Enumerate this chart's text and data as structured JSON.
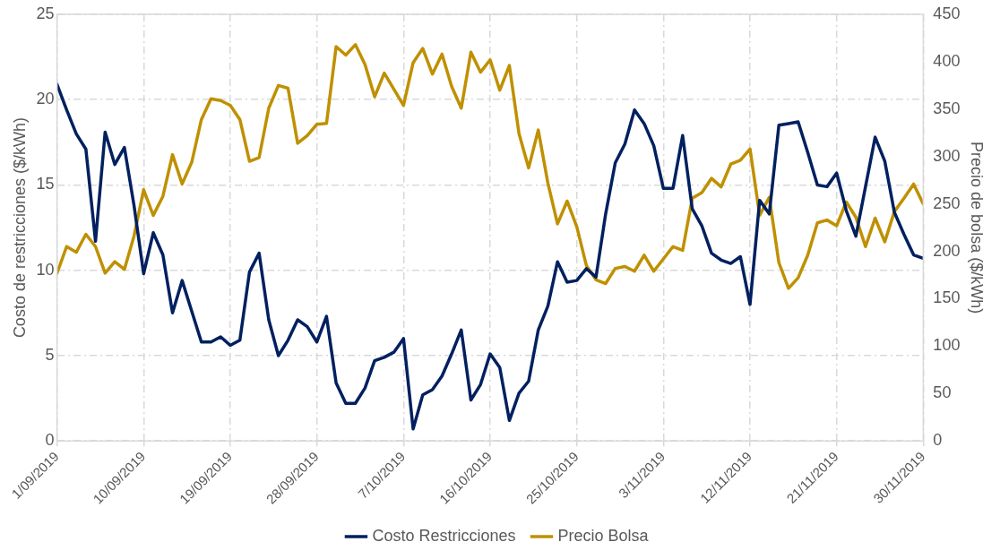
{
  "chart_data": {
    "type": "line",
    "ylabel": "Costo de restricciones ($/kWh)",
    "y2label": "Precio de bolsa ($/kWh)",
    "x": [
      "2019-09-01",
      "2019-09-02",
      "2019-09-03",
      "2019-09-04",
      "2019-09-05",
      "2019-09-06",
      "2019-09-07",
      "2019-09-08",
      "2019-09-09",
      "2019-09-10",
      "2019-09-11",
      "2019-09-12",
      "2019-09-13",
      "2019-09-14",
      "2019-09-15",
      "2019-09-16",
      "2019-09-17",
      "2019-09-18",
      "2019-09-19",
      "2019-09-20",
      "2019-09-21",
      "2019-09-22",
      "2019-09-23",
      "2019-09-24",
      "2019-09-25",
      "2019-09-26",
      "2019-09-27",
      "2019-09-28",
      "2019-09-29",
      "2019-09-30",
      "2019-10-01",
      "2019-10-02",
      "2019-10-03",
      "2019-10-04",
      "2019-10-05",
      "2019-10-06",
      "2019-10-07",
      "2019-10-08",
      "2019-10-09",
      "2019-10-10",
      "2019-10-11",
      "2019-10-12",
      "2019-10-13",
      "2019-10-14",
      "2019-10-15",
      "2019-10-16",
      "2019-10-17",
      "2019-10-18",
      "2019-10-19",
      "2019-10-20",
      "2019-10-21",
      "2019-10-22",
      "2019-10-23",
      "2019-10-24",
      "2019-10-25",
      "2019-10-26",
      "2019-10-27",
      "2019-10-28",
      "2019-10-29",
      "2019-10-30",
      "2019-10-31",
      "2019-11-01",
      "2019-11-02",
      "2019-11-03",
      "2019-11-04",
      "2019-11-05",
      "2019-11-06",
      "2019-11-07",
      "2019-11-08",
      "2019-11-09",
      "2019-11-10",
      "2019-11-11",
      "2019-11-12",
      "2019-11-13",
      "2019-11-14",
      "2019-11-15",
      "2019-11-16",
      "2019-11-17",
      "2019-11-18",
      "2019-11-19",
      "2019-11-20",
      "2019-11-21",
      "2019-11-22",
      "2019-11-23",
      "2019-11-24",
      "2019-11-25",
      "2019-11-26",
      "2019-11-27",
      "2019-11-28",
      "2019-11-29",
      "2019-11-30"
    ],
    "series": [
      {
        "name": "Costo Restricciones",
        "color": "#002060",
        "axis": "y",
        "values": [
          20.9,
          19.4,
          18.0,
          17.1,
          11.7,
          18.1,
          16.2,
          17.2,
          13.8,
          9.8,
          12.2,
          10.9,
          7.5,
          9.4,
          7.6,
          5.8,
          5.8,
          6.1,
          5.6,
          5.9,
          9.9,
          11.0,
          7.1,
          5.0,
          5.9,
          7.1,
          6.7,
          5.8,
          7.3,
          3.4,
          2.2,
          2.2,
          3.1,
          4.7,
          4.9,
          5.2,
          6.0,
          0.7,
          2.7,
          3.0,
          3.8,
          5.1,
          6.5,
          2.4,
          3.3,
          5.1,
          4.3,
          1.2,
          2.8,
          3.5,
          6.5,
          7.9,
          10.5,
          9.3,
          9.4,
          10.1,
          9.6,
          13.3,
          16.3,
          17.4,
          19.4,
          18.6,
          17.3,
          14.8,
          14.8,
          17.9,
          13.6,
          12.6,
          11.0,
          10.6,
          10.4,
          10.8,
          8.0,
          14.1,
          13.3,
          18.5,
          18.6,
          18.7,
          16.9,
          15.0,
          14.9,
          15.7,
          13.5,
          12.0,
          14.9,
          17.8,
          16.4,
          13.4,
          12.1,
          10.9,
          10.7
        ]
      },
      {
        "name": "Precio Bolsa",
        "color": "#bf9000",
        "axis": "y2",
        "values": [
          177,
          205,
          199,
          218,
          205,
          177,
          189,
          181,
          216,
          265,
          238,
          258,
          302,
          271,
          294,
          339,
          361,
          359,
          354,
          339,
          295,
          299,
          351,
          375,
          372,
          314,
          322,
          334,
          335,
          416,
          407,
          418,
          397,
          363,
          388,
          371,
          354,
          399,
          414,
          387,
          408,
          374,
          351,
          410,
          389,
          402,
          370,
          396,
          324,
          288,
          328,
          272,
          229,
          253,
          226,
          185,
          170,
          166,
          182,
          184,
          179,
          196,
          179,
          192,
          205,
          201,
          256,
          262,
          277,
          268,
          292,
          296,
          308,
          238,
          257,
          188,
          161,
          172,
          196,
          230,
          233,
          227,
          252,
          236,
          205,
          235,
          210,
          242,
          256,
          271,
          250
        ]
      }
    ],
    "xlim": [
      "2019-09-01",
      "2019-11-30"
    ],
    "xticks": [
      {
        "value": "2019-09-01",
        "label": "1/09/2019"
      },
      {
        "value": "2019-09-10",
        "label": "10/09/2019"
      },
      {
        "value": "2019-09-19",
        "label": "19/09/2019"
      },
      {
        "value": "2019-09-28",
        "label": "28/09/2019"
      },
      {
        "value": "2019-10-07",
        "label": "7/10/2019"
      },
      {
        "value": "2019-10-16",
        "label": "16/10/2019"
      },
      {
        "value": "2019-10-25",
        "label": "25/10/2019"
      },
      {
        "value": "2019-11-03",
        "label": "3/11/2019"
      },
      {
        "value": "2019-11-12",
        "label": "12/11/2019"
      },
      {
        "value": "2019-11-21",
        "label": "21/11/2019"
      },
      {
        "value": "2019-11-30",
        "label": "30/11/2019"
      }
    ],
    "ylim": [
      0,
      25
    ],
    "yticks": [
      0,
      5,
      10,
      15,
      20,
      25
    ],
    "y2lim": [
      0,
      450
    ],
    "y2ticks": [
      0,
      50,
      100,
      150,
      200,
      250,
      300,
      350,
      400,
      450
    ],
    "grid": true,
    "legend": "bottom",
    "marker": "none",
    "line_style": "solid"
  }
}
